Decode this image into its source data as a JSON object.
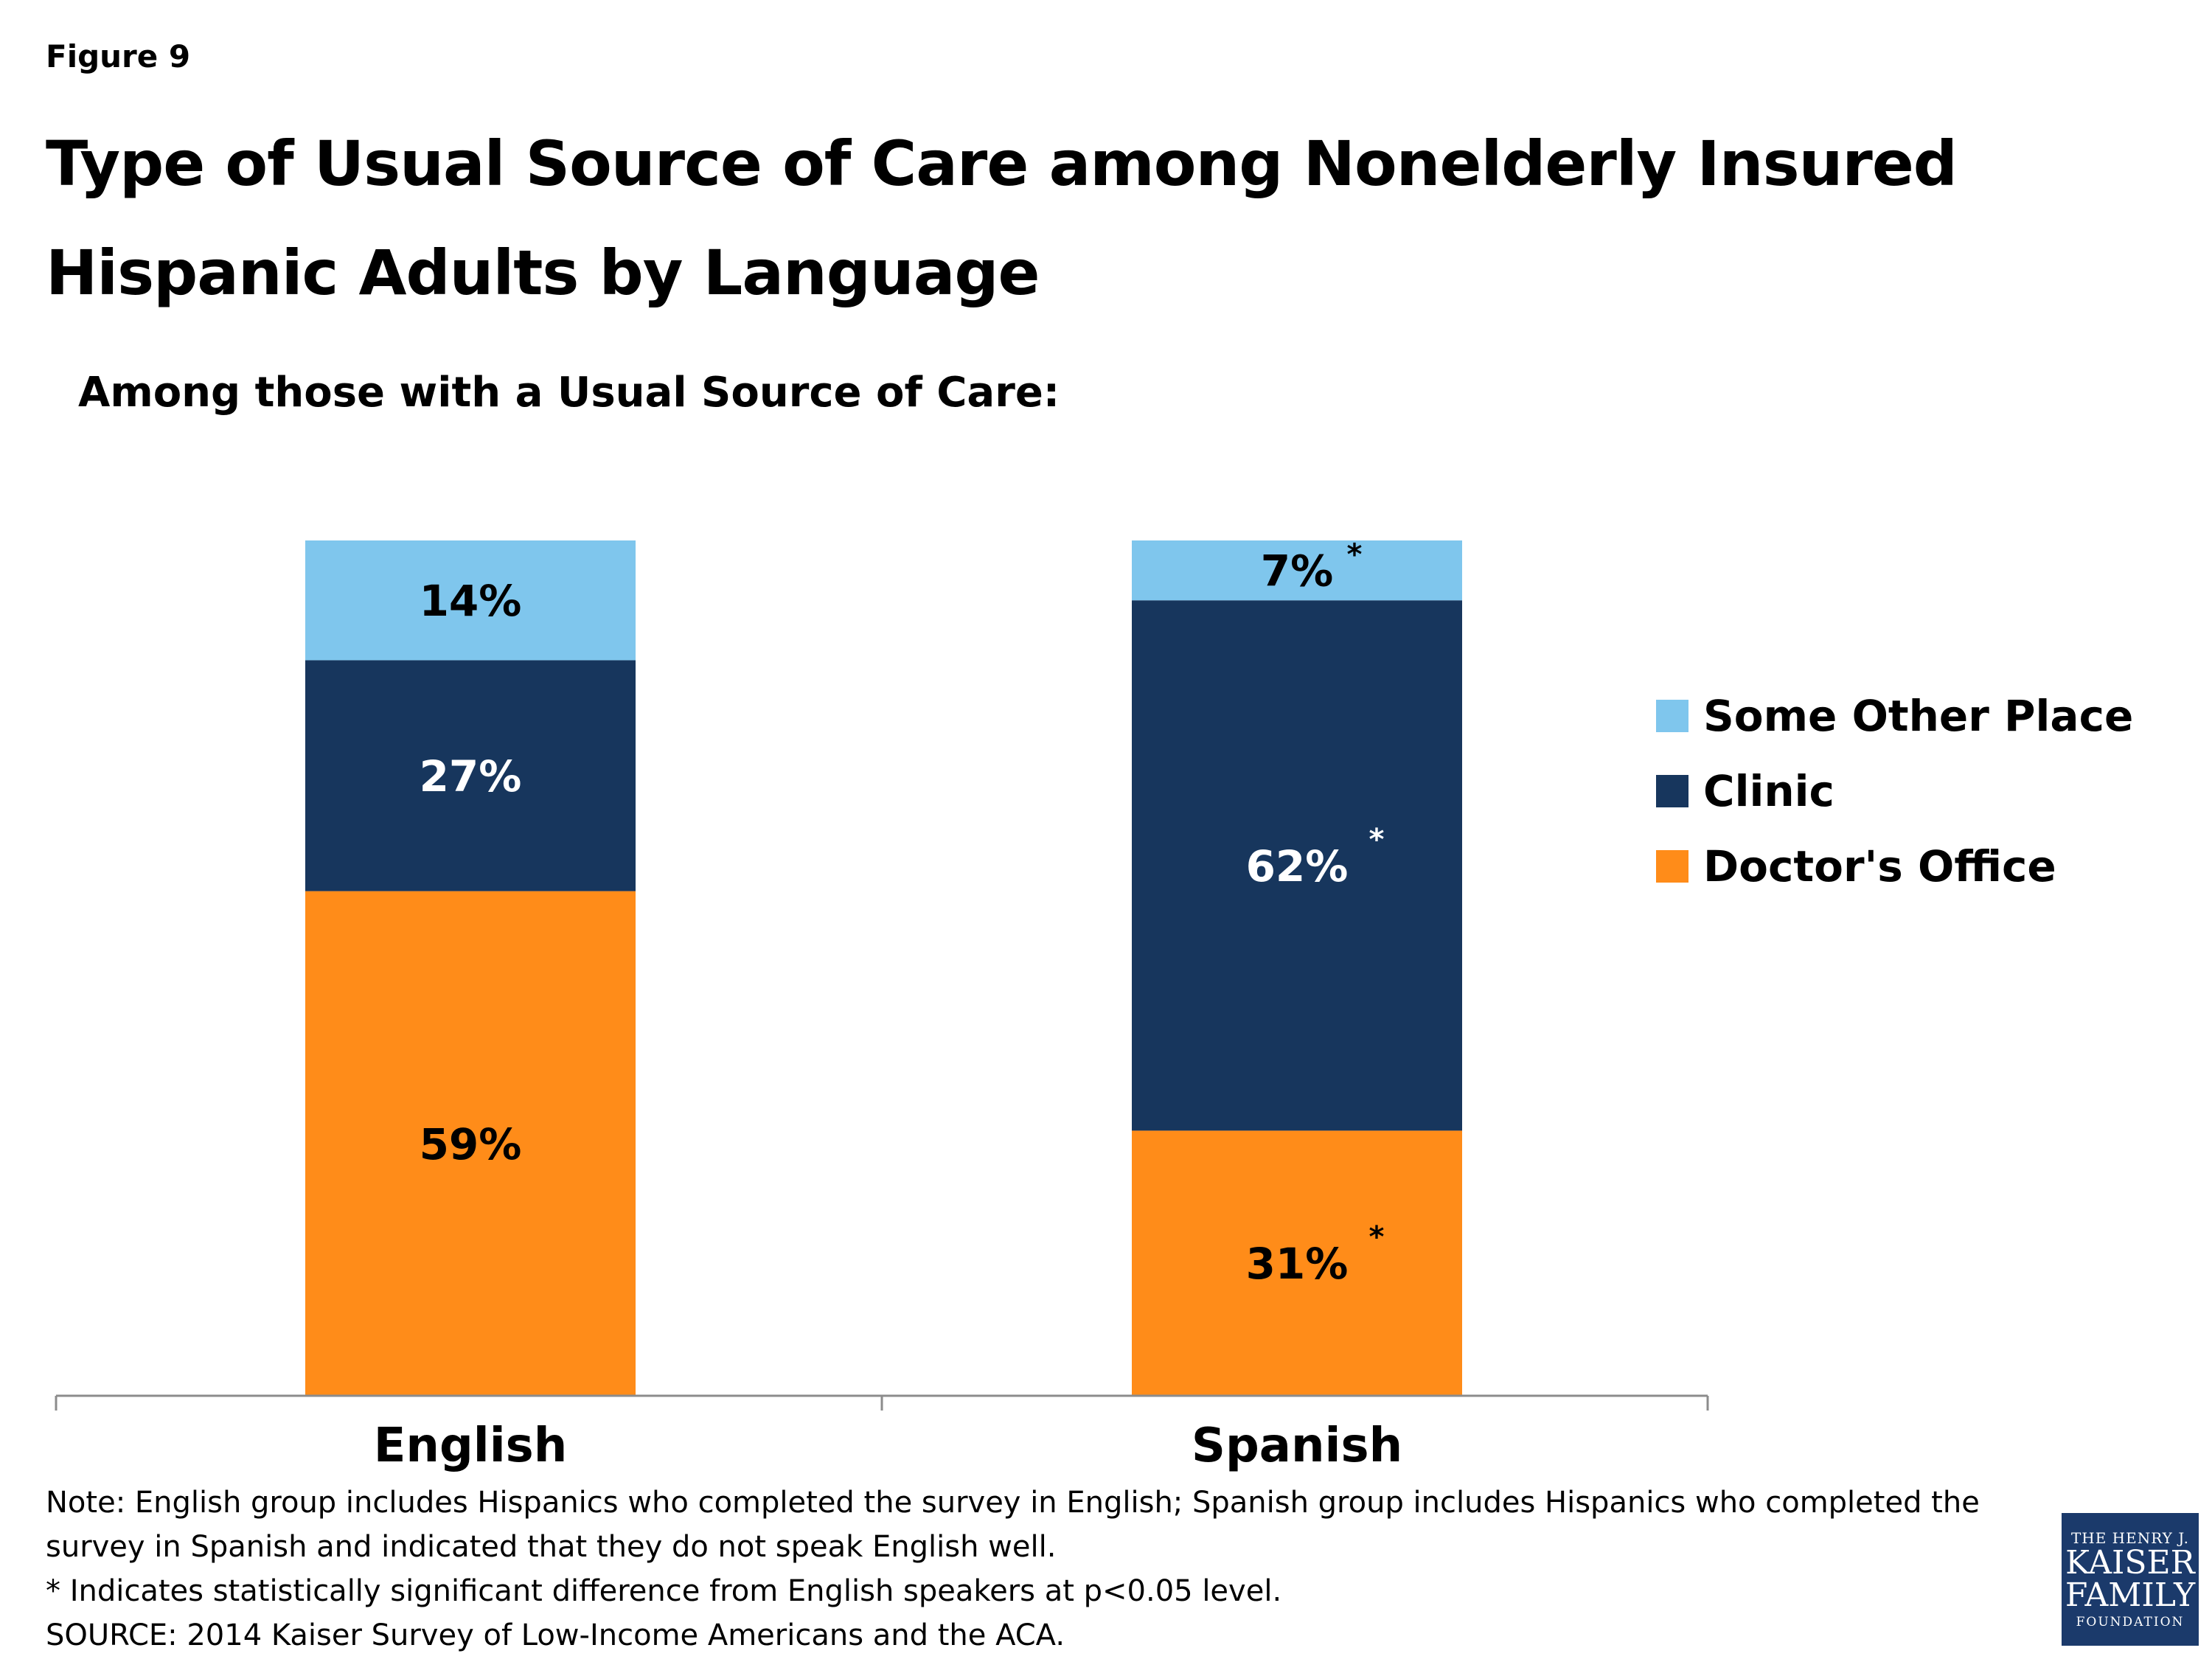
{
  "figure_label": "Figure 9",
  "title": "Type of Usual Source of Care among Nonelderly Insured Hispanic Adults by Language",
  "subtitle": "Among those with a Usual Source of Care:",
  "chart_data": {
    "type": "bar",
    "stacked": true,
    "categories": [
      "English",
      "Spanish"
    ],
    "series": [
      {
        "name": "Doctor's Office",
        "values": [
          59,
          31
        ],
        "labels": [
          "59%",
          "31%"
        ],
        "significant": [
          false,
          true
        ],
        "color": "#ff8c19",
        "label_color": "#000000"
      },
      {
        "name": "Clinic",
        "values": [
          27,
          62
        ],
        "labels": [
          "27%",
          "62%"
        ],
        "significant": [
          false,
          true
        ],
        "color": "#17365d",
        "label_color": "#ffffff"
      },
      {
        "name": "Some Other Place",
        "values": [
          14,
          7
        ],
        "labels": [
          "14%",
          "7%"
        ],
        "significant": [
          false,
          true
        ],
        "color": "#7fc6ed",
        "label_color": "#000000"
      }
    ],
    "significance_marker": "*",
    "ylim": [
      0,
      100
    ],
    "legend_position": "right",
    "legend_order": [
      "Some Other Place",
      "Clinic",
      "Doctor's Office"
    ]
  },
  "notes": [
    "Note: English group includes Hispanics who completed the survey in English; Spanish group includes Hispanics who completed the",
    "survey in Spanish and indicated that they do not speak English well.",
    "* Indicates statistically significant difference from English speakers at p<0.05 level.",
    "SOURCE: 2014 Kaiser Survey of Low-Income Americans and the ACA."
  ],
  "logo": {
    "line1": "THE HENRY J.",
    "line2": "KAISER",
    "line3": "FAMILY",
    "line4": "FOUNDATION"
  }
}
